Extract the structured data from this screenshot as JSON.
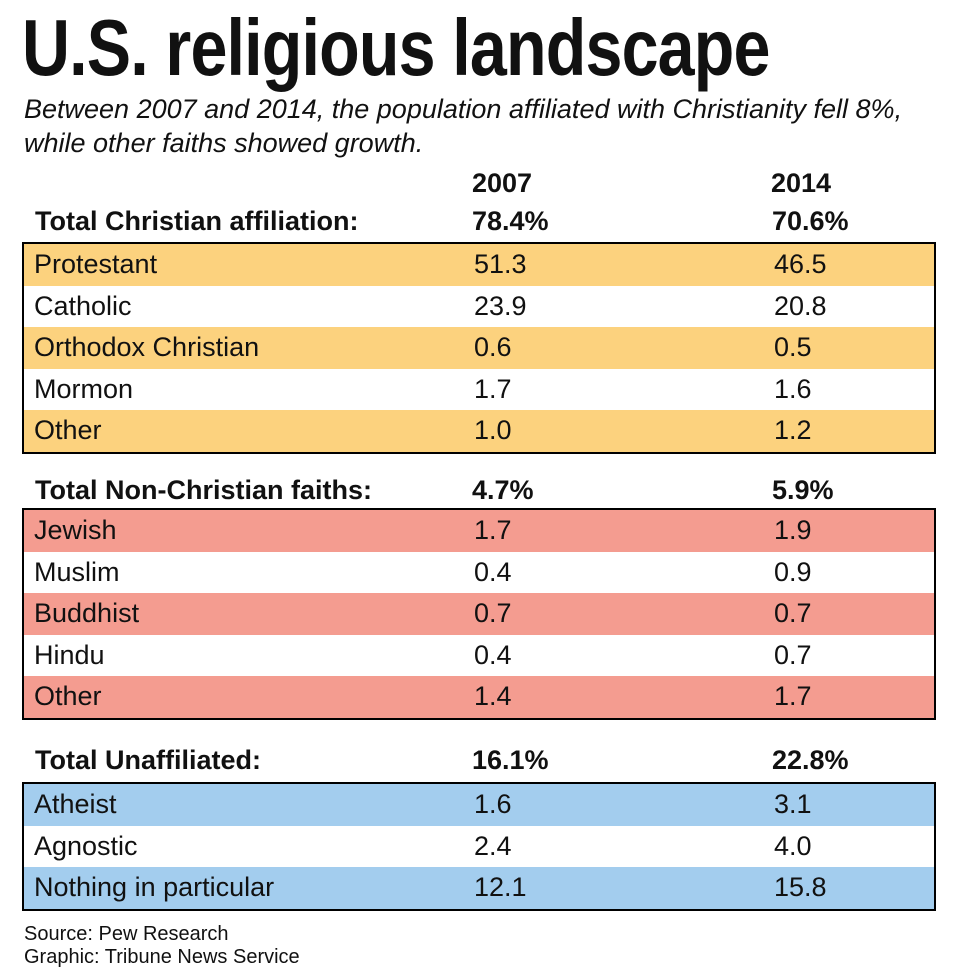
{
  "title": "U.S. religious landscape",
  "subtitle": "Between 2007 and 2014, the population affiliated with Christianity fell 8%, while other faiths showed growth.",
  "colors": {
    "christian_highlight": "#fcd27e",
    "nonchristian_highlight": "#f49c90",
    "unaffiliated_highlight": "#a3cdee",
    "plain": "#ffffff"
  },
  "chart_data": {
    "type": "table",
    "columns": [
      "2007",
      "2014"
    ],
    "groups": [
      {
        "key": "christian",
        "total_label": "Total Christian affiliation:",
        "total_2007": "78.4%",
        "total_2014": "70.6%",
        "rows": [
          {
            "label": "Protestant",
            "v2007": "51.3",
            "v2014": "46.5"
          },
          {
            "label": "Catholic",
            "v2007": "23.9",
            "v2014": "20.8"
          },
          {
            "label": "Orthodox Christian",
            "v2007": "0.6",
            "v2014": "0.5"
          },
          {
            "label": "Mormon",
            "v2007": "1.7",
            "v2014": "1.6"
          },
          {
            "label": "Other",
            "v2007": "1.0",
            "v2014": "1.2"
          }
        ]
      },
      {
        "key": "nonchristian",
        "total_label": "Total Non-Christian faiths:",
        "total_2007": "4.7%",
        "total_2014": "5.9%",
        "rows": [
          {
            "label": "Jewish",
            "v2007": "1.7",
            "v2014": "1.9"
          },
          {
            "label": "Muslim",
            "v2007": "0.4",
            "v2014": "0.9"
          },
          {
            "label": "Buddhist",
            "v2007": "0.7",
            "v2014": "0.7"
          },
          {
            "label": "Hindu",
            "v2007": "0.4",
            "v2014": "0.7"
          },
          {
            "label": "Other",
            "v2007": "1.4",
            "v2014": "1.7"
          }
        ]
      },
      {
        "key": "unaffiliated",
        "total_label": "Total Unaffiliated:",
        "total_2007": "16.1%",
        "total_2014": "22.8%",
        "rows": [
          {
            "label": "Atheist",
            "v2007": "1.6",
            "v2014": "3.1"
          },
          {
            "label": "Agnostic",
            "v2007": "2.4",
            "v2014": "4.0"
          },
          {
            "label": "Nothing in particular",
            "v2007": "12.1",
            "v2014": "15.8"
          }
        ]
      }
    ]
  },
  "footer": {
    "source": "Source: Pew Research",
    "credit": "Graphic: Tribune News Service"
  }
}
